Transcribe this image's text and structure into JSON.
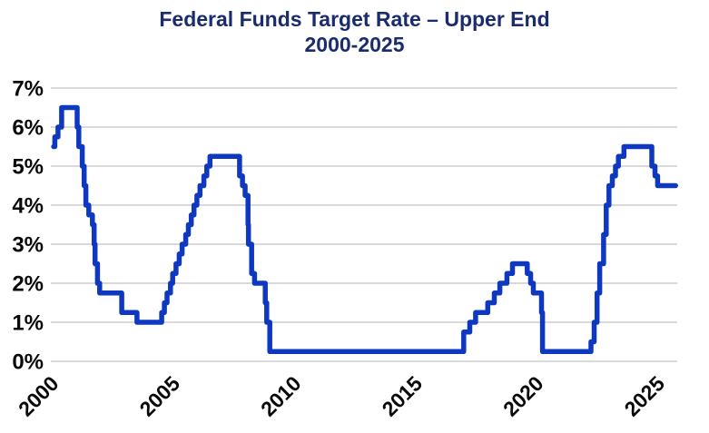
{
  "chart_data": {
    "type": "line",
    "interpolation": "step-after",
    "title": "Federal Funds Target Rate – Upper End",
    "subtitle": "2000-2025",
    "xlabel": "",
    "ylabel": "",
    "xlim": [
      1999.95,
      2025.75
    ],
    "ylim": [
      0,
      7
    ],
    "grid": "horizontal-only",
    "legend_position": "none",
    "x_ticks": [
      {
        "year": 2000,
        "label": "2000"
      },
      {
        "year": 2005,
        "label": "2005"
      },
      {
        "year": 2010,
        "label": "2010"
      },
      {
        "year": 2015,
        "label": "2015"
      },
      {
        "year": 2020,
        "label": "2020"
      },
      {
        "year": 2025,
        "label": "2025"
      }
    ],
    "y_ticks": [
      {
        "value": 0,
        "label": "0%"
      },
      {
        "value": 1,
        "label": "1%"
      },
      {
        "value": 2,
        "label": "2%"
      },
      {
        "value": 3,
        "label": "3%"
      },
      {
        "value": 4,
        "label": "4%"
      },
      {
        "value": 5,
        "label": "5%"
      },
      {
        "value": 6,
        "label": "6%"
      },
      {
        "value": 7,
        "label": "7%"
      }
    ],
    "series": [
      {
        "name": "Federal Funds Target Rate – Upper End (%)",
        "points": [
          [
            2000.04,
            5.5
          ],
          [
            2000.09,
            5.75
          ],
          [
            2000.22,
            6.0
          ],
          [
            2000.37,
            6.5
          ],
          [
            2001.01,
            6.0
          ],
          [
            2001.08,
            5.5
          ],
          [
            2001.22,
            5.0
          ],
          [
            2001.3,
            4.5
          ],
          [
            2001.37,
            4.0
          ],
          [
            2001.49,
            3.75
          ],
          [
            2001.64,
            3.5
          ],
          [
            2001.71,
            3.0
          ],
          [
            2001.75,
            2.5
          ],
          [
            2001.85,
            2.0
          ],
          [
            2001.94,
            1.75
          ],
          [
            2002.85,
            1.25
          ],
          [
            2003.48,
            1.0
          ],
          [
            2004.5,
            1.25
          ],
          [
            2004.61,
            1.5
          ],
          [
            2004.72,
            1.75
          ],
          [
            2004.86,
            2.0
          ],
          [
            2004.95,
            2.25
          ],
          [
            2005.09,
            2.5
          ],
          [
            2005.22,
            2.75
          ],
          [
            2005.34,
            3.0
          ],
          [
            2005.49,
            3.25
          ],
          [
            2005.6,
            3.5
          ],
          [
            2005.72,
            3.75
          ],
          [
            2005.83,
            4.0
          ],
          [
            2005.95,
            4.25
          ],
          [
            2006.08,
            4.5
          ],
          [
            2006.24,
            4.75
          ],
          [
            2006.36,
            5.0
          ],
          [
            2006.49,
            5.25
          ],
          [
            2007.71,
            4.75
          ],
          [
            2007.83,
            4.5
          ],
          [
            2007.94,
            4.25
          ],
          [
            2008.06,
            3.5
          ],
          [
            2008.08,
            3.0
          ],
          [
            2008.21,
            2.25
          ],
          [
            2008.33,
            2.0
          ],
          [
            2008.77,
            1.5
          ],
          [
            2008.83,
            1.0
          ],
          [
            2008.96,
            0.25
          ],
          [
            2016.96,
            0.75
          ],
          [
            2017.21,
            1.0
          ],
          [
            2017.45,
            1.25
          ],
          [
            2017.95,
            1.5
          ],
          [
            2018.22,
            1.75
          ],
          [
            2018.45,
            2.0
          ],
          [
            2018.74,
            2.25
          ],
          [
            2018.97,
            2.5
          ],
          [
            2019.58,
            2.25
          ],
          [
            2019.72,
            2.0
          ],
          [
            2019.83,
            1.75
          ],
          [
            2020.17,
            1.25
          ],
          [
            2020.21,
            0.25
          ],
          [
            2022.21,
            0.5
          ],
          [
            2022.34,
            1.0
          ],
          [
            2022.46,
            1.75
          ],
          [
            2022.57,
            2.5
          ],
          [
            2022.73,
            3.25
          ],
          [
            2022.84,
            4.0
          ],
          [
            2022.95,
            4.5
          ],
          [
            2023.09,
            4.75
          ],
          [
            2023.22,
            5.0
          ],
          [
            2023.34,
            5.25
          ],
          [
            2023.57,
            5.5
          ],
          [
            2024.72,
            5.0
          ],
          [
            2024.85,
            4.75
          ],
          [
            2024.96,
            4.5
          ],
          [
            2025.7,
            4.5
          ]
        ]
      }
    ],
    "colors": {
      "line": "#0e38c0",
      "grid": "#d9d9d9",
      "tick_labels": "#0a0a0a",
      "title": "#1b2c6e",
      "background": "#ffffff"
    }
  }
}
